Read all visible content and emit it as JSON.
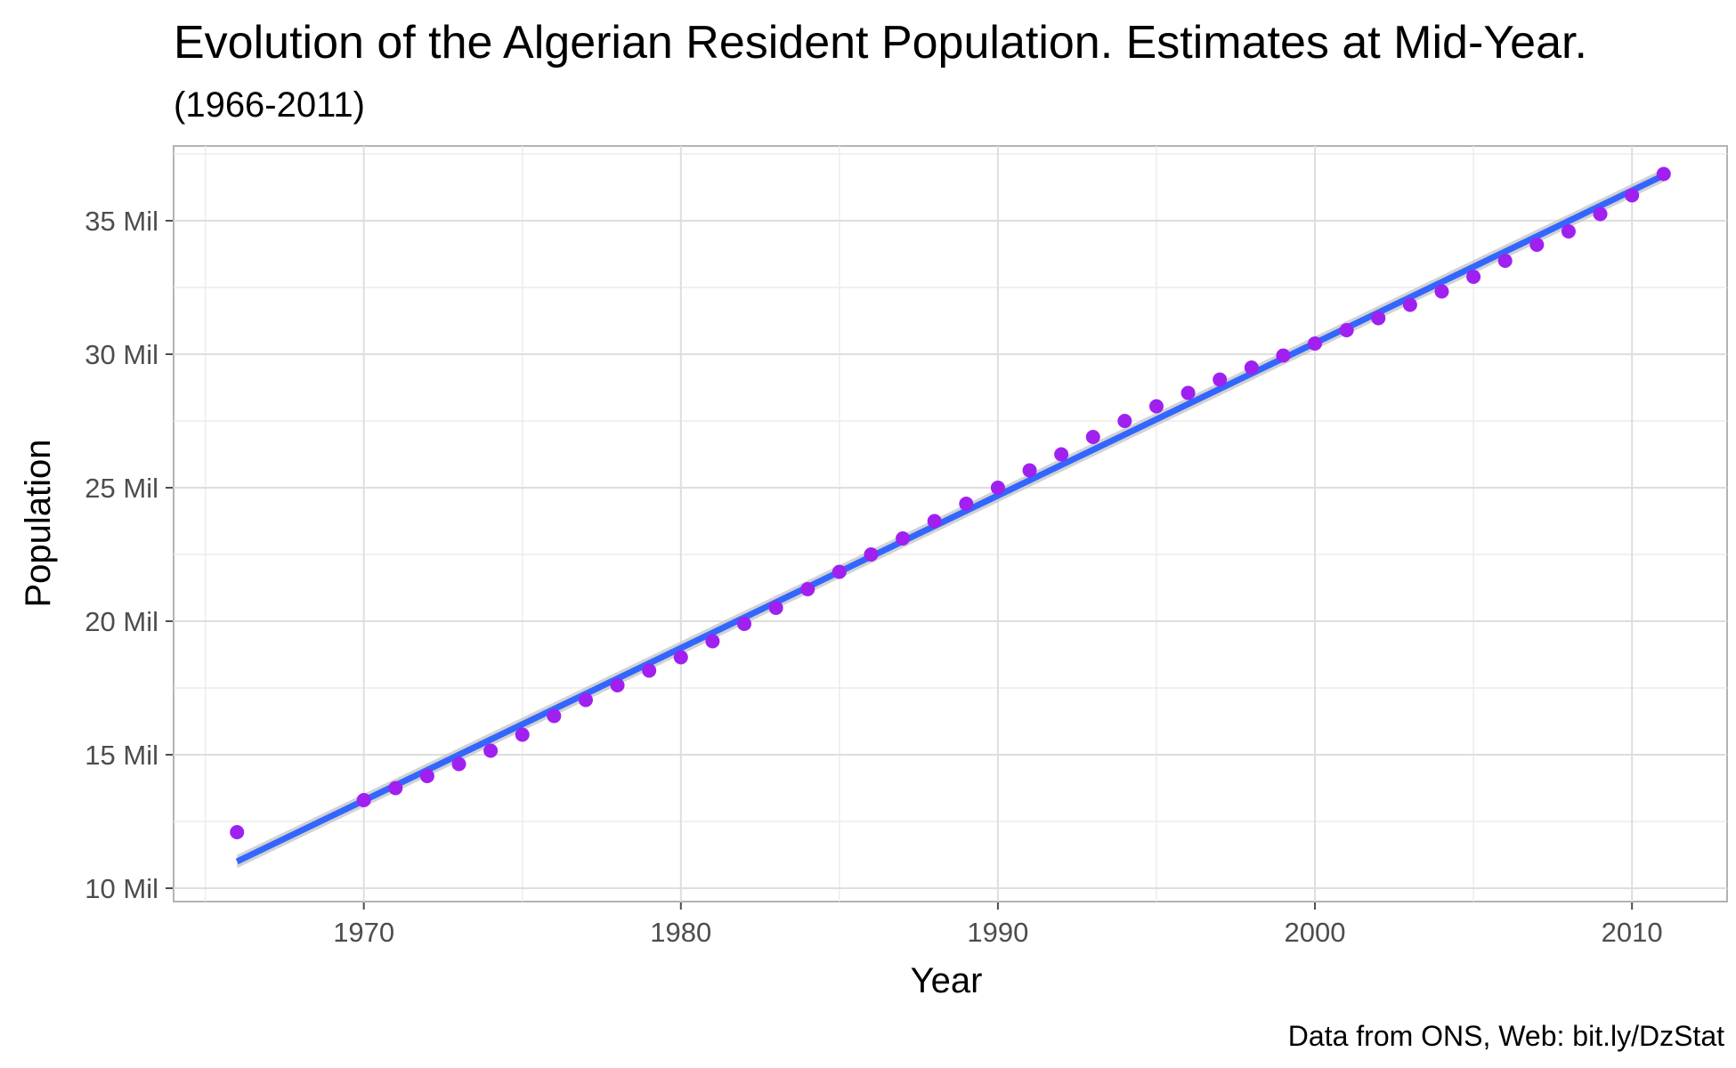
{
  "chart_data": {
    "type": "scatter",
    "title": "Evolution of the Algerian Resident Population. Estimates at Mid-Year.",
    "subtitle": "(1966-2011)",
    "xlabel": "Year",
    "ylabel": "Population",
    "caption": "Data from ONS, Web: bit.ly/DzStat",
    "xlim": [
      1964,
      2013
    ],
    "ylim": [
      9.5,
      37.8
    ],
    "x_ticks": [
      1970,
      1980,
      1990,
      2000,
      2010
    ],
    "y_ticks": [
      10,
      15,
      20,
      25,
      30,
      35
    ],
    "y_tick_labels": [
      "10 Mil",
      "15 Mil",
      "20 Mil",
      "25 Mil",
      "30 Mil",
      "35 Mil"
    ],
    "y_unit": "millions",
    "grid": true,
    "colors": {
      "points": "#a020f0",
      "trend_line": "#3366ff",
      "confidence_band": "#bfbfbf",
      "grid": "#dedede",
      "panel_border": "#b3b3b3"
    },
    "series": [
      {
        "type": "scatter",
        "x": [
          1966,
          1970,
          1971,
          1972,
          1973,
          1974,
          1975,
          1976,
          1977,
          1978,
          1979,
          1980,
          1981,
          1982,
          1983,
          1984,
          1985,
          1986,
          1987,
          1988,
          1989,
          1990,
          1991,
          1992,
          1993,
          1994,
          1995,
          1996,
          1997,
          1998,
          1999,
          2000,
          2001,
          2002,
          2003,
          2004,
          2005,
          2006,
          2007,
          2008,
          2009,
          2010,
          2011
        ],
        "y": [
          12.1,
          13.3,
          13.75,
          14.2,
          14.65,
          15.15,
          15.75,
          16.45,
          17.05,
          17.6,
          18.15,
          18.65,
          19.25,
          19.9,
          20.5,
          21.2,
          21.85,
          22.5,
          23.1,
          23.75,
          24.4,
          25.0,
          25.65,
          26.25,
          26.9,
          27.5,
          28.05,
          28.55,
          29.05,
          29.5,
          29.95,
          30.4,
          30.9,
          31.35,
          31.85,
          32.35,
          32.9,
          33.5,
          34.1,
          34.6,
          35.25,
          35.95,
          36.75
        ]
      },
      {
        "type": "line",
        "method": "linear fit",
        "x": [
          1966,
          2011
        ],
        "y": [
          11.0,
          36.7
        ],
        "band": [
          0.25,
          0.25
        ]
      }
    ]
  }
}
